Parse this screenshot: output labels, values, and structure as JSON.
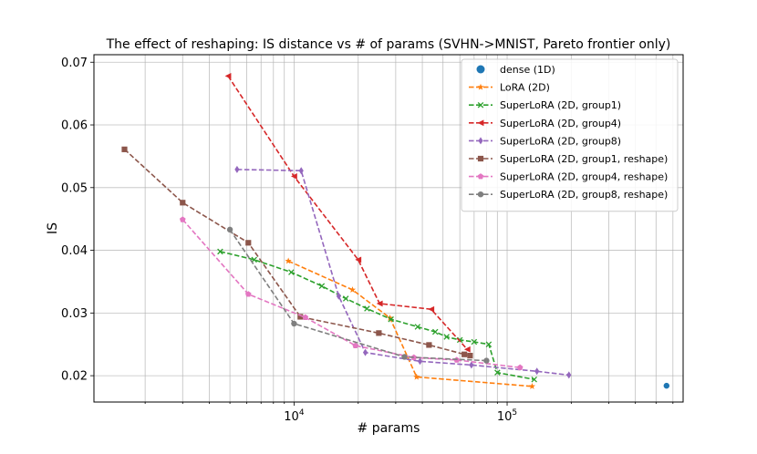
{
  "chart_data": {
    "type": "line",
    "title": "The effect of reshaping: IS distance vs # of params (SVHN->MNIST, Pareto frontier only)",
    "xlabel": "# params",
    "ylabel": "IS",
    "xscale": "log",
    "xlim": [
      1150,
      670000
    ],
    "ylim": [
      0.0158,
      0.0712
    ],
    "grid": true,
    "legend_position": "top-right",
    "x_tick_values": [
      10000,
      100000
    ],
    "x_tick_labels": [
      "10^4",
      "10^5"
    ],
    "y_tick_values": [
      0.02,
      0.03,
      0.04,
      0.05,
      0.06,
      0.07
    ],
    "y_tick_labels": [
      "0.02",
      "0.03",
      "0.04",
      "0.05",
      "0.06",
      "0.07"
    ],
    "series": [
      {
        "name": "dense (1D)",
        "color": "#1f77b4",
        "marker": "circle",
        "dashed": false,
        "points": [
          [
            560000,
            0.0184
          ]
        ]
      },
      {
        "name": "LoRA (2D)",
        "color": "#ff7f0e",
        "marker": "star",
        "dashed": true,
        "points": [
          [
            9400,
            0.0383
          ],
          [
            18800,
            0.0337
          ],
          [
            28200,
            0.0292
          ],
          [
            37600,
            0.0198
          ],
          [
            131000,
            0.0183
          ]
        ]
      },
      {
        "name": "SuperLoRA (2D, group1)",
        "color": "#2ca02c",
        "marker": "x",
        "dashed": true,
        "points": [
          [
            4500,
            0.0398
          ],
          [
            6500,
            0.0385
          ],
          [
            9700,
            0.0365
          ],
          [
            13500,
            0.0343
          ],
          [
            17500,
            0.0323
          ],
          [
            22000,
            0.0307
          ],
          [
            28500,
            0.029
          ],
          [
            38000,
            0.0278
          ],
          [
            46000,
            0.027
          ],
          [
            52000,
            0.0262
          ],
          [
            60000,
            0.0257
          ],
          [
            70000,
            0.0254
          ],
          [
            82000,
            0.025
          ],
          [
            90000,
            0.0205
          ],
          [
            134000,
            0.0194
          ]
        ]
      },
      {
        "name": "SuperLoRA (2D, group4)",
        "color": "#d62728",
        "marker": "triangle-left",
        "dashed": true,
        "points": [
          [
            4900,
            0.0678
          ],
          [
            10000,
            0.0518
          ],
          [
            20000,
            0.0385
          ],
          [
            25200,
            0.0315
          ],
          [
            44000,
            0.0306
          ],
          [
            65000,
            0.0242
          ]
        ]
      },
      {
        "name": "SuperLoRA (2D, group8)",
        "color": "#9467bd",
        "marker": "diamond",
        "dashed": true,
        "points": [
          [
            5400,
            0.0529
          ],
          [
            10800,
            0.0527
          ],
          [
            16200,
            0.0327
          ],
          [
            21600,
            0.0237
          ],
          [
            39000,
            0.0223
          ],
          [
            68000,
            0.0217
          ],
          [
            138000,
            0.0207
          ],
          [
            195000,
            0.0201
          ]
        ]
      },
      {
        "name": "SuperLoRA (2D, group1, reshape)",
        "color": "#8c564b",
        "marker": "square",
        "dashed": true,
        "points": [
          [
            1600,
            0.0561
          ],
          [
            3000,
            0.0476
          ],
          [
            6100,
            0.0412
          ],
          [
            10700,
            0.0294
          ],
          [
            25000,
            0.0268
          ],
          [
            43000,
            0.0249
          ],
          [
            63000,
            0.0234
          ],
          [
            67000,
            0.0232
          ]
        ]
      },
      {
        "name": "SuperLoRA (2D, group4, reshape)",
        "color": "#e377c2",
        "marker": "pentagon",
        "dashed": true,
        "points": [
          [
            3000,
            0.0449
          ],
          [
            6100,
            0.033
          ],
          [
            11300,
            0.0293
          ],
          [
            19400,
            0.0248
          ],
          [
            36500,
            0.0229
          ],
          [
            58000,
            0.0225
          ],
          [
            115000,
            0.0213
          ]
        ]
      },
      {
        "name": "SuperLoRA (2D, group8, reshape)",
        "color": "#7f7f7f",
        "marker": "circle",
        "dashed": true,
        "points": [
          [
            5000,
            0.0433
          ],
          [
            10000,
            0.0283
          ],
          [
            33000,
            0.023
          ],
          [
            80000,
            0.0224
          ]
        ]
      }
    ]
  }
}
